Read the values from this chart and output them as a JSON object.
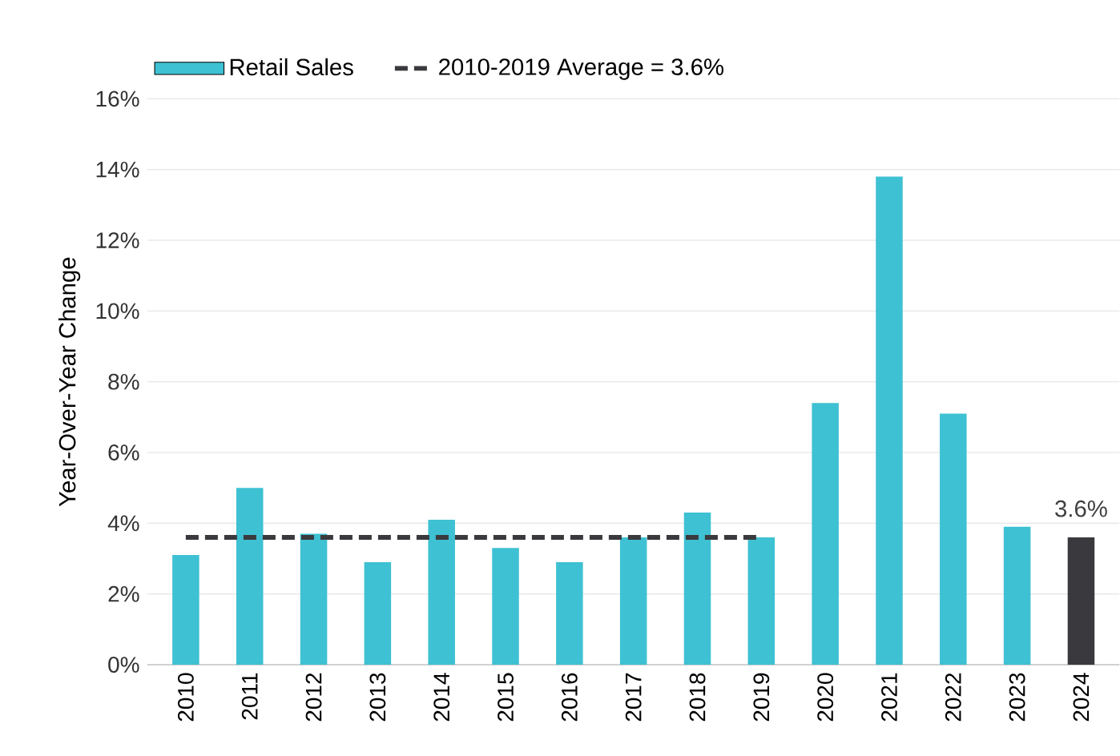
{
  "chart_data": {
    "type": "bar",
    "ylabel": "Year-Over-Year Change",
    "categories": [
      "2010",
      "2011",
      "2012",
      "2013",
      "2014",
      "2015",
      "2016",
      "2017",
      "2018",
      "2019",
      "2020",
      "2021",
      "2022",
      "2023",
      "2024"
    ],
    "series": [
      {
        "name": "Retail Sales",
        "colors": [
          "#3ec1d3",
          "#3ec1d3",
          "#3ec1d3",
          "#3ec1d3",
          "#3ec1d3",
          "#3ec1d3",
          "#3ec1d3",
          "#3ec1d3",
          "#3ec1d3",
          "#3ec1d3",
          "#3ec1d3",
          "#3ec1d3",
          "#3ec1d3",
          "#3ec1d3",
          "#3a3a3e"
        ],
        "values": [
          3.1,
          5.0,
          3.7,
          2.9,
          4.1,
          3.3,
          2.9,
          3.6,
          4.3,
          3.6,
          7.4,
          13.8,
          7.1,
          3.9,
          3.6
        ],
        "value_labels": [
          null,
          null,
          null,
          null,
          null,
          null,
          null,
          null,
          null,
          null,
          null,
          null,
          null,
          null,
          "3.6%"
        ]
      },
      {
        "name": "2010-2019 Average = 3.6%",
        "type": "line",
        "color": "#3a3a3e",
        "line_style": "dashed",
        "marker": "none",
        "values": [
          3.6,
          3.6,
          3.6,
          3.6,
          3.6,
          3.6,
          3.6,
          3.6,
          3.6,
          3.6,
          null,
          null,
          null,
          null,
          null
        ]
      }
    ],
    "ylim": [
      0,
      16
    ],
    "yticks": [
      {
        "value": 0,
        "label": "0%"
      },
      {
        "value": 2,
        "label": "2%"
      },
      {
        "value": 4,
        "label": "4%"
      },
      {
        "value": 6,
        "label": "6%"
      },
      {
        "value": 8,
        "label": "8%"
      },
      {
        "value": 10,
        "label": "10%"
      },
      {
        "value": 12,
        "label": "12%"
      },
      {
        "value": 14,
        "label": "14%"
      },
      {
        "value": 16,
        "label": "16%"
      }
    ],
    "grid": "y",
    "legend": "top left"
  }
}
